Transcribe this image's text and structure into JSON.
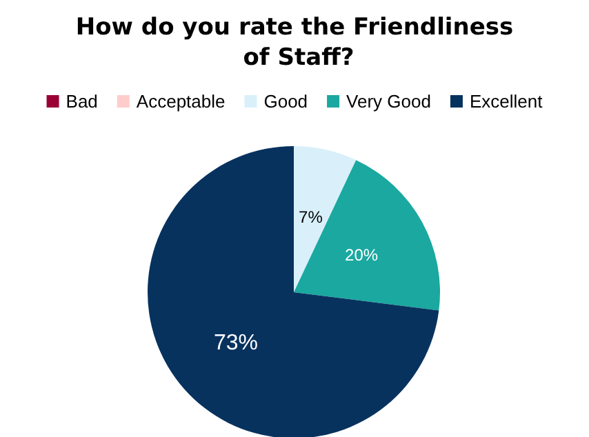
{
  "chart_data": {
    "type": "pie",
    "title": "How do you rate the Friendliness of Staff?",
    "categories": [
      "Bad",
      "Acceptable",
      "Good",
      "Very Good",
      "Excellent"
    ],
    "values": [
      0,
      0,
      7,
      20,
      73
    ],
    "colors": [
      "#990033",
      "#ffcccc",
      "#d9f0fb",
      "#1aa8a0",
      "#08325e"
    ],
    "value_labels": [
      null,
      null,
      "7%",
      "20%",
      "73%"
    ],
    "legend": "top"
  }
}
